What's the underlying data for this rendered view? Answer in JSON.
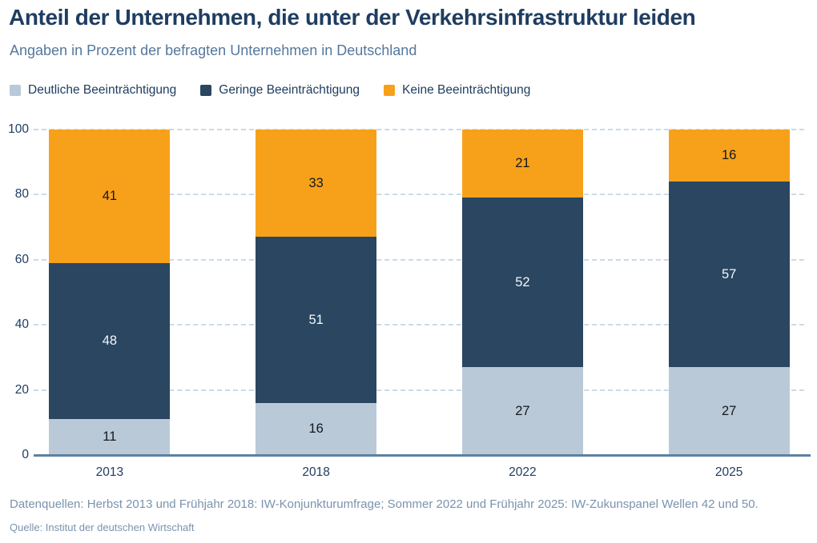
{
  "header": {
    "title": "Anteil der Unternehmen, die unter der Verkehrsinfrastruktur leiden",
    "subtitle": "Angaben in Prozent der befragten Unternehmen in Deutschland"
  },
  "legend": [
    {
      "label": "Deutliche Beeinträchtigung",
      "color": "#b9c9d8"
    },
    {
      "label": "Geringe Beeinträchtigung",
      "color": "#2a4661"
    },
    {
      "label": "Keine Beeinträchtigung",
      "color": "#f7a11b"
    }
  ],
  "chart_data": {
    "type": "bar",
    "stacked": true,
    "title": "Anteil der Unternehmen, die unter der Verkehrsinfrastruktur leiden",
    "subtitle": "Angaben in Prozent der befragten Unternehmen in Deutschland",
    "categories": [
      "2013",
      "2018",
      "2022",
      "2025"
    ],
    "series": [
      {
        "name": "Deutliche Beeinträchtigung",
        "color": "#b9c9d8",
        "label_color": "#15181c",
        "values": [
          11,
          16,
          27,
          27
        ]
      },
      {
        "name": "Geringe Beeinträchtigung",
        "color": "#2a4661",
        "label_color": "#f4f7fa",
        "values": [
          48,
          51,
          52,
          57
        ]
      },
      {
        "name": "Keine Beeinträchtigung",
        "color": "#f7a11b",
        "label_color": "#15181c",
        "values": [
          41,
          33,
          21,
          16
        ]
      }
    ],
    "xlabel": "",
    "ylabel": "",
    "ylim": [
      0,
      100
    ],
    "y_ticks": [
      0,
      20,
      40,
      60,
      80,
      100
    ],
    "grid": "horizontal-dashed",
    "legend_position": "top-left"
  },
  "colors": {
    "title": "#1f3d60",
    "subtitle": "#54789c",
    "axis_label": "#1f3d60",
    "gridline": "#cbdbe9",
    "axis_line": "#5d82a2",
    "footer": "#7a93ae",
    "background": "#ffffff"
  },
  "footer": {
    "note": "Datenquellen: Herbst 2013 und Frühjahr 2018: IW-Konjunkturumfrage; Sommer 2022 und Frühjahr 2025: IW-Zukunspanel Wellen 42 und 50.",
    "source": "Quelle: Institut der deutschen Wirtschaft"
  }
}
